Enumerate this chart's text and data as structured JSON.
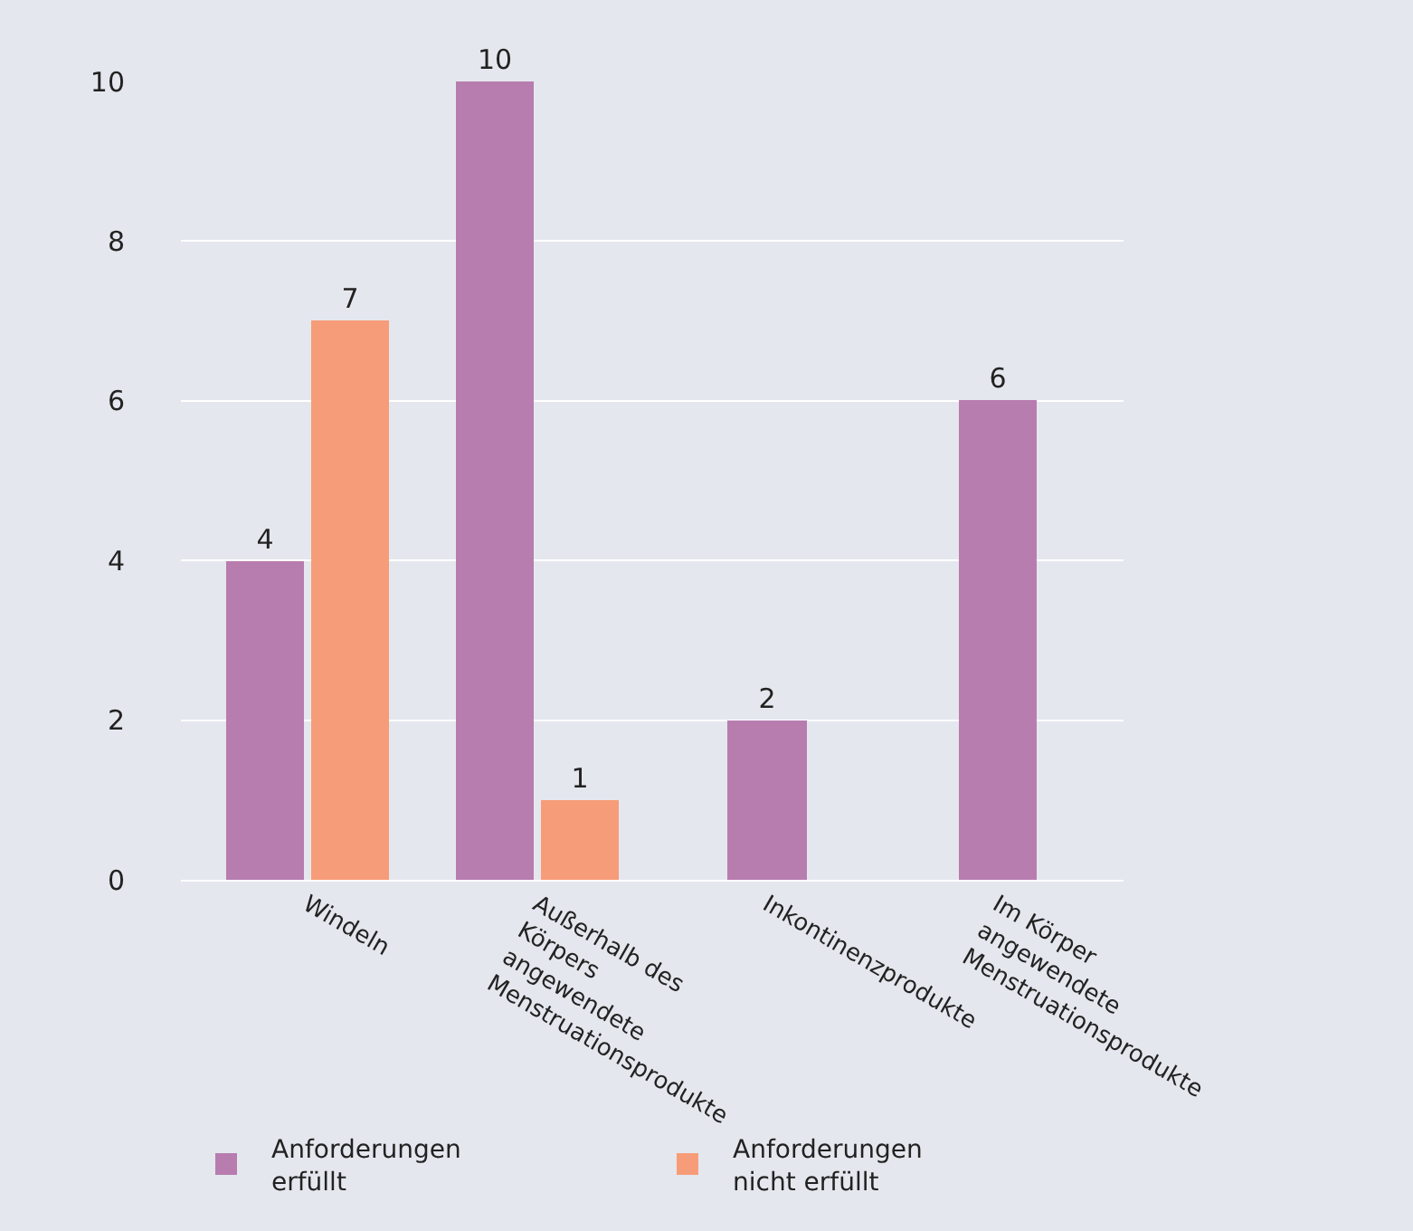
{
  "chart_data": {
    "type": "bar",
    "categories": [
      "Windeln",
      "Außerhalb des Körpers angewendete Menstruationsprodukte",
      "Inkontinenzprodukte",
      "Im Körper angewendete Menstruationsprodukte"
    ],
    "series": [
      {
        "name": "Anforderungen erfüllt",
        "color": "#b77daf",
        "values": [
          4,
          10,
          2,
          6
        ]
      },
      {
        "name": "Anforderungen nicht erfüllt",
        "color": "#f79c78",
        "values": [
          7,
          1,
          null,
          null
        ]
      }
    ],
    "ylim": [
      0,
      10
    ],
    "yticks": [
      0,
      2,
      4,
      6,
      8,
      10
    ],
    "grid": "y",
    "legend": "bottom left",
    "data_labels": true
  }
}
